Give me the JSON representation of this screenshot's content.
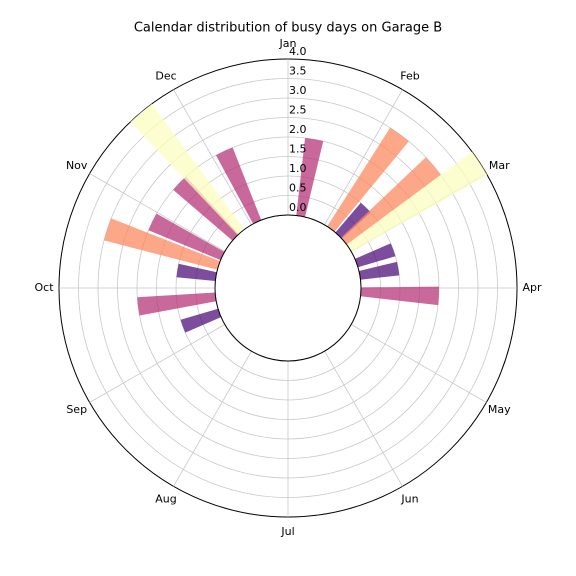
{
  "chart_data": {
    "type": "polar-bar",
    "title": "Calendar distribution of busy days on Garage B",
    "x": [
      10,
      36,
      44,
      50,
      57,
      70,
      80,
      93,
      250,
      263,
      279,
      288,
      296,
      314,
      320,
      335
    ],
    "values": [
      2,
      3,
      1,
      3,
      4,
      1,
      1,
      2,
      1,
      2,
      1,
      3,
      2,
      2,
      4,
      2
    ],
    "colors": [
      "#b73779",
      "#fc8961",
      "#51127c",
      "#fc8961",
      "#fcfdbf",
      "#51127c",
      "#51127c",
      "#b73779",
      "#51127c",
      "#b73779",
      "#51127c",
      "#fc8961",
      "#b73779",
      "#b73779",
      "#fcfdbf",
      "#b73779"
    ],
    "xlim": [
      0,
      360
    ],
    "xticks": [
      {
        "value": 0,
        "label": "Jan"
      },
      {
        "value": 30,
        "label": "Feb"
      },
      {
        "value": 60,
        "label": "Mar"
      },
      {
        "value": 90,
        "label": "Apr"
      },
      {
        "value": 120,
        "label": "May"
      },
      {
        "value": 150,
        "label": "Jun"
      },
      {
        "value": 180,
        "label": "Jul"
      },
      {
        "value": 210,
        "label": "Aug"
      },
      {
        "value": 240,
        "label": "Sep"
      },
      {
        "value": 270,
        "label": "Oct"
      },
      {
        "value": 300,
        "label": "Nov"
      },
      {
        "value": 330,
        "label": "Dec"
      }
    ],
    "ylim": [
      0,
      4
    ],
    "yticks": [
      {
        "value": 0,
        "label": "0.0"
      },
      0.5,
      {
        "value": 1,
        "label": "1.0"
      },
      1.5,
      {
        "value": 2,
        "label": "2.0"
      },
      2.5,
      {
        "value": 3,
        "label": "3.0"
      },
      3.5,
      {
        "value": 4,
        "label": "4.0"
      }
    ],
    "grid": true
  }
}
